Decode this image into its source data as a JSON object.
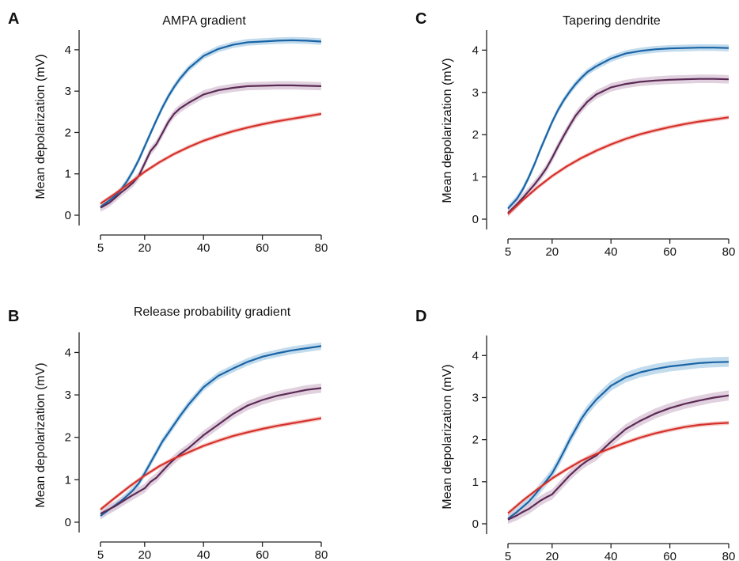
{
  "chart_data": [
    {
      "panel_label": "A",
      "type": "line",
      "title": "AMPA gradient",
      "ylabel": "Mean depolarization (mV)",
      "xlabel": "",
      "xlim": [
        5,
        80
      ],
      "ylim": [
        0,
        4.4
      ],
      "xticks": [
        5,
        20,
        40,
        60,
        80
      ],
      "yticks": [
        0,
        1,
        2,
        3,
        4
      ],
      "series": [
        {
          "color": "#1a64a6",
          "band_color": "#b9d6ea",
          "band": 0.08,
          "x": [
            5,
            8,
            10,
            12,
            14,
            16,
            18,
            20,
            22,
            24,
            26,
            28,
            30,
            32,
            35,
            40,
            45,
            50,
            55,
            60,
            65,
            70,
            75,
            80
          ],
          "y": [
            0.2,
            0.36,
            0.47,
            0.62,
            0.82,
            1.06,
            1.34,
            1.66,
            1.98,
            2.3,
            2.6,
            2.87,
            3.1,
            3.3,
            3.55,
            3.85,
            4.02,
            4.12,
            4.18,
            4.2,
            4.22,
            4.23,
            4.22,
            4.2
          ]
        },
        {
          "color": "#5b2a55",
          "band_color": "#dcc9d9",
          "band": 0.1,
          "x": [
            5,
            8,
            10,
            12,
            14,
            16,
            18,
            20,
            22,
            24,
            26,
            28,
            30,
            32,
            35,
            40,
            45,
            50,
            55,
            60,
            65,
            70,
            75,
            80
          ],
          "y": [
            0.18,
            0.3,
            0.42,
            0.55,
            0.66,
            0.78,
            0.95,
            1.25,
            1.55,
            1.72,
            1.98,
            2.25,
            2.45,
            2.58,
            2.72,
            2.92,
            3.02,
            3.08,
            3.12,
            3.13,
            3.14,
            3.14,
            3.13,
            3.12
          ]
        },
        {
          "color": "#d6302a",
          "band_color": "#f2c1bd",
          "band": 0.05,
          "x": [
            5,
            10,
            15,
            20,
            25,
            30,
            35,
            40,
            45,
            50,
            55,
            60,
            65,
            70,
            75,
            80
          ],
          "y": [
            0.28,
            0.52,
            0.78,
            1.05,
            1.28,
            1.48,
            1.65,
            1.8,
            1.92,
            2.03,
            2.12,
            2.2,
            2.27,
            2.33,
            2.39,
            2.45
          ]
        }
      ]
    },
    {
      "panel_label": "B",
      "type": "line",
      "title": "Release probability gradient",
      "ylabel": "Mean depolarization (mV)",
      "xlabel": "",
      "xlim": [
        5,
        80
      ],
      "ylim": [
        0,
        4.4
      ],
      "xticks": [
        5,
        20,
        40,
        60,
        80
      ],
      "yticks": [
        0,
        1,
        2,
        3,
        4
      ],
      "series": [
        {
          "color": "#1a64a6",
          "band_color": "#b9d6ea",
          "band": 0.09,
          "x": [
            5,
            8,
            10,
            12,
            14,
            16,
            18,
            20,
            22,
            24,
            26,
            28,
            30,
            32,
            35,
            40,
            45,
            50,
            55,
            60,
            65,
            70,
            75,
            80
          ],
          "y": [
            0.15,
            0.3,
            0.4,
            0.5,
            0.62,
            0.75,
            0.92,
            1.15,
            1.4,
            1.65,
            1.9,
            2.1,
            2.3,
            2.5,
            2.78,
            3.18,
            3.45,
            3.62,
            3.78,
            3.9,
            3.98,
            4.05,
            4.1,
            4.15
          ]
        },
        {
          "color": "#5b2a55",
          "band_color": "#dcc9d9",
          "band": 0.11,
          "x": [
            5,
            10,
            15,
            20,
            22,
            24,
            26,
            28,
            30,
            32,
            35,
            40,
            45,
            50,
            55,
            60,
            65,
            70,
            75,
            80
          ],
          "y": [
            0.2,
            0.38,
            0.6,
            0.8,
            0.95,
            1.05,
            1.2,
            1.35,
            1.48,
            1.6,
            1.75,
            2.05,
            2.3,
            2.55,
            2.75,
            2.88,
            2.98,
            3.05,
            3.12,
            3.16
          ]
        },
        {
          "color": "#d6302a",
          "band_color": "#f2c1bd",
          "band": 0.05,
          "x": [
            5,
            10,
            15,
            20,
            25,
            30,
            35,
            40,
            45,
            50,
            55,
            60,
            65,
            70,
            75,
            80
          ],
          "y": [
            0.3,
            0.58,
            0.85,
            1.1,
            1.32,
            1.5,
            1.65,
            1.8,
            1.92,
            2.03,
            2.12,
            2.2,
            2.27,
            2.33,
            2.39,
            2.45
          ]
        }
      ]
    },
    {
      "panel_label": "C",
      "type": "line",
      "title": "Tapering dendrite",
      "ylabel": "Mean depolarization (mV)",
      "xlabel": "",
      "xlim": [
        5,
        80
      ],
      "ylim": [
        0,
        4.4
      ],
      "xticks": [
        5,
        20,
        40,
        60,
        80
      ],
      "yticks": [
        0,
        1,
        2,
        3,
        4
      ],
      "series": [
        {
          "color": "#1a64a6",
          "band_color": "#b9d6ea",
          "band": 0.08,
          "x": [
            5,
            8,
            10,
            12,
            14,
            16,
            18,
            20,
            22,
            24,
            26,
            28,
            30,
            32,
            35,
            40,
            45,
            50,
            55,
            60,
            65,
            70,
            75,
            80
          ],
          "y": [
            0.25,
            0.48,
            0.7,
            0.98,
            1.3,
            1.65,
            1.98,
            2.3,
            2.58,
            2.82,
            3.02,
            3.2,
            3.35,
            3.48,
            3.62,
            3.8,
            3.92,
            3.98,
            4.02,
            4.04,
            4.05,
            4.06,
            4.06,
            4.05
          ]
        },
        {
          "color": "#5b2a55",
          "band_color": "#dcc9d9",
          "band": 0.1,
          "x": [
            5,
            8,
            10,
            12,
            14,
            16,
            18,
            20,
            22,
            24,
            26,
            28,
            30,
            32,
            35,
            40,
            45,
            50,
            55,
            60,
            65,
            70,
            75,
            80
          ],
          "y": [
            0.15,
            0.35,
            0.5,
            0.66,
            0.82,
            1.0,
            1.2,
            1.45,
            1.72,
            1.98,
            2.22,
            2.45,
            2.62,
            2.78,
            2.95,
            3.12,
            3.2,
            3.25,
            3.28,
            3.3,
            3.31,
            3.32,
            3.32,
            3.31
          ]
        },
        {
          "color": "#d6302a",
          "band_color": "#f2c1bd",
          "band": 0.05,
          "x": [
            5,
            10,
            15,
            20,
            25,
            30,
            35,
            40,
            45,
            50,
            55,
            60,
            65,
            70,
            75,
            80
          ],
          "y": [
            0.12,
            0.45,
            0.75,
            1.02,
            1.25,
            1.45,
            1.62,
            1.77,
            1.9,
            2.01,
            2.1,
            2.18,
            2.25,
            2.31,
            2.36,
            2.41
          ]
        }
      ]
    },
    {
      "panel_label": "D",
      "type": "line",
      "title": "",
      "ylabel": "Mean depolarization (mV)",
      "xlabel": "",
      "xlim": [
        5,
        80
      ],
      "ylim": [
        0,
        4.4
      ],
      "xticks": [
        5,
        20,
        40,
        60,
        80
      ],
      "yticks": [
        0,
        1,
        2,
        3,
        4
      ],
      "series": [
        {
          "color": "#1a64a6",
          "band_color": "#b9d6ea",
          "band": 0.12,
          "x": [
            5,
            8,
            10,
            12,
            14,
            16,
            18,
            20,
            22,
            24,
            26,
            28,
            30,
            32,
            35,
            40,
            45,
            50,
            55,
            60,
            65,
            70,
            75,
            80
          ],
          "y": [
            0.12,
            0.28,
            0.4,
            0.52,
            0.68,
            0.85,
            1.02,
            1.2,
            1.45,
            1.72,
            2.0,
            2.25,
            2.5,
            2.7,
            2.95,
            3.28,
            3.48,
            3.6,
            3.68,
            3.74,
            3.78,
            3.82,
            3.84,
            3.85
          ]
        },
        {
          "color": "#5b2a55",
          "band_color": "#dcc9d9",
          "band": 0.12,
          "x": [
            5,
            8,
            10,
            12,
            14,
            16,
            18,
            20,
            22,
            24,
            26,
            28,
            30,
            32,
            35,
            40,
            45,
            50,
            55,
            60,
            65,
            70,
            75,
            80
          ],
          "y": [
            0.1,
            0.2,
            0.28,
            0.35,
            0.45,
            0.55,
            0.63,
            0.7,
            0.85,
            1.0,
            1.15,
            1.28,
            1.4,
            1.5,
            1.62,
            1.95,
            2.25,
            2.45,
            2.62,
            2.75,
            2.85,
            2.93,
            3.0,
            3.05
          ]
        },
        {
          "color": "#d6302a",
          "band_color": "#f2c1bd",
          "band": 0.05,
          "x": [
            5,
            10,
            15,
            20,
            25,
            30,
            35,
            40,
            45,
            50,
            55,
            60,
            65,
            70,
            75,
            80
          ],
          "y": [
            0.25,
            0.55,
            0.82,
            1.08,
            1.3,
            1.5,
            1.66,
            1.8,
            1.93,
            2.05,
            2.15,
            2.23,
            2.3,
            2.35,
            2.38,
            2.4
          ]
        }
      ]
    }
  ]
}
